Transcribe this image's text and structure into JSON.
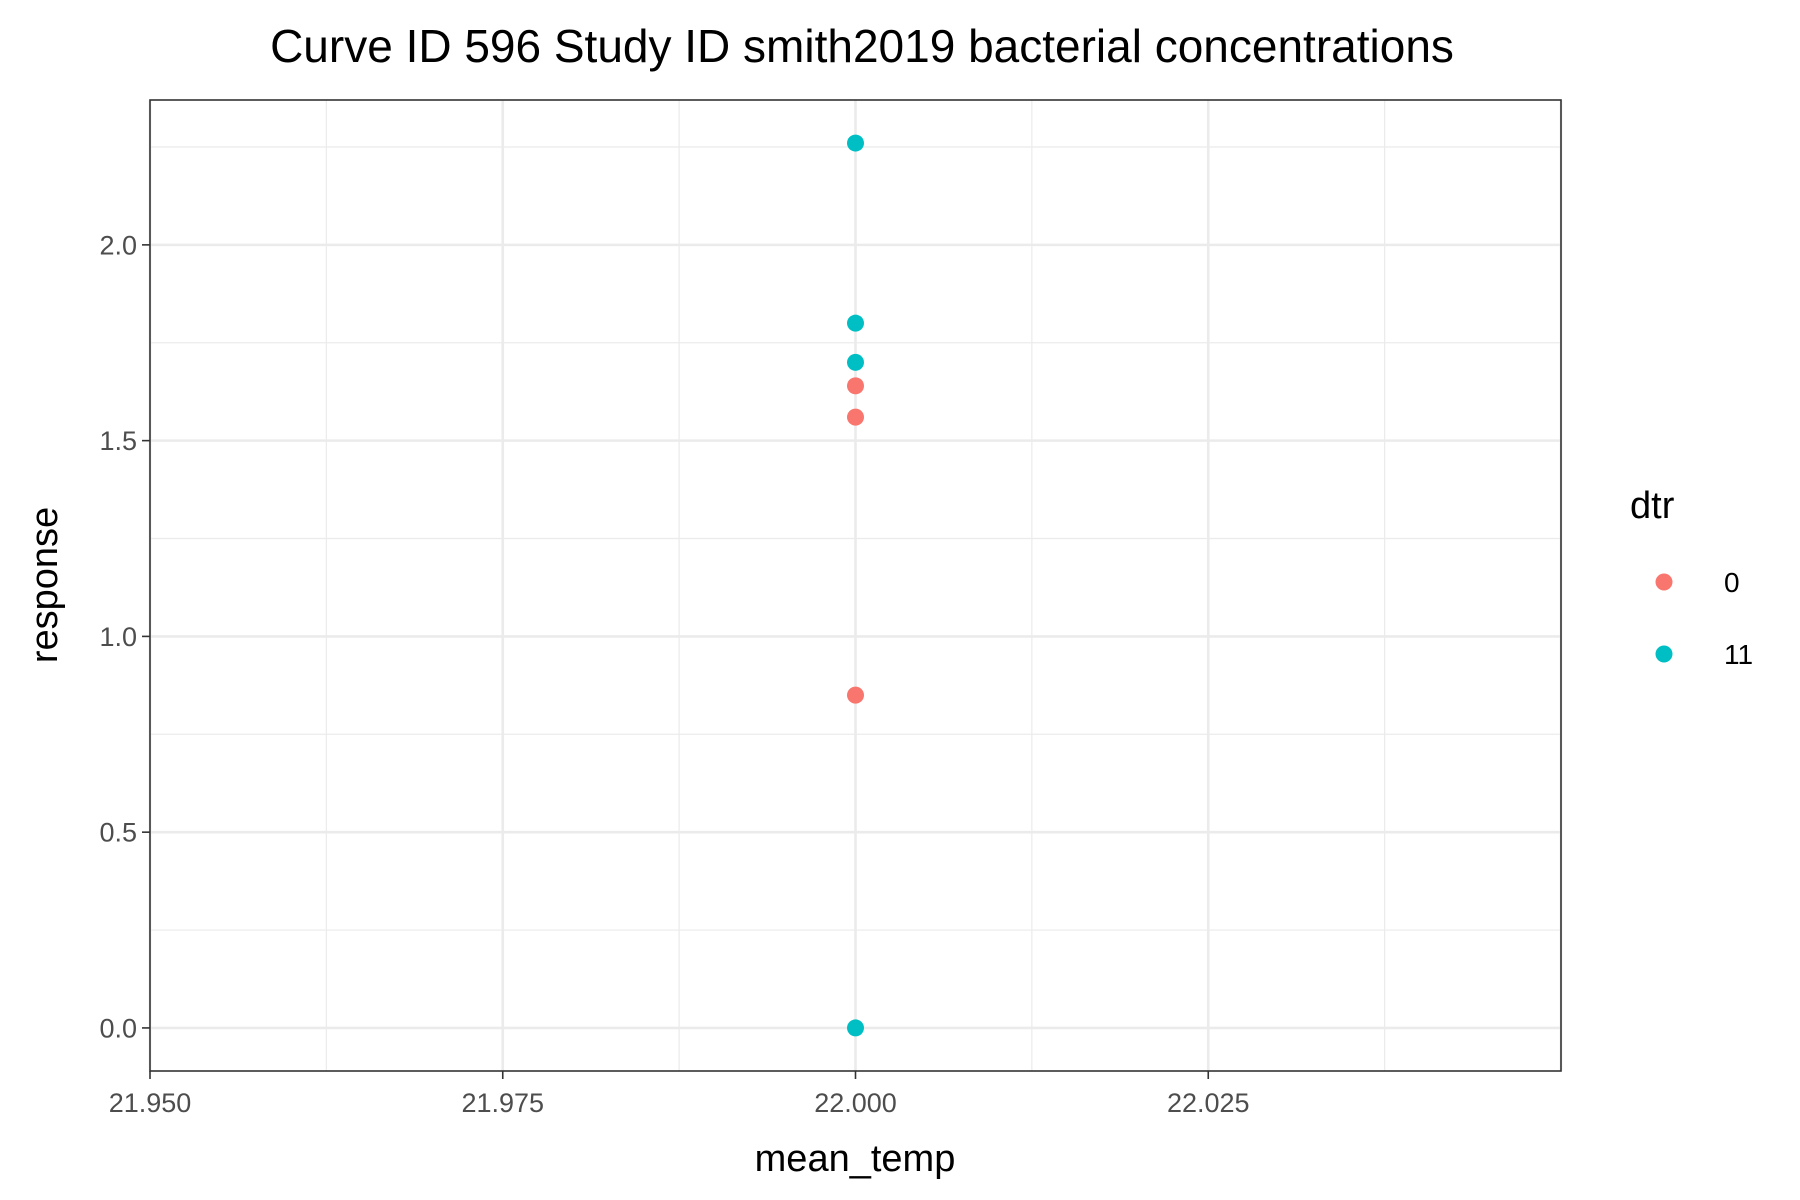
{
  "chart_data": {
    "type": "scatter",
    "title": "Curve ID 596 Study ID smith2019 bacterial concentrations",
    "xlabel": "mean_temp",
    "ylabel": "response",
    "xlim": [
      21.95,
      22.05
    ],
    "ylim": [
      -0.11,
      2.37
    ],
    "x_ticks": [
      "21.950",
      "21.975",
      "22.000",
      "22.025"
    ],
    "y_ticks": [
      "0.0",
      "0.5",
      "1.0",
      "1.5",
      "2.0"
    ],
    "grid": true,
    "legend": {
      "title": "dtr",
      "position": "right",
      "entries": [
        "0",
        "11"
      ]
    },
    "series": [
      {
        "name": "0",
        "color": "#F8766D",
        "points": [
          [
            22.0,
            1.64
          ],
          [
            22.0,
            1.56
          ],
          [
            22.0,
            0.85
          ]
        ]
      },
      {
        "name": "11",
        "color": "#00BFC4",
        "points": [
          [
            22.0,
            2.26
          ],
          [
            22.0,
            1.8
          ],
          [
            22.0,
            1.7
          ],
          [
            22.0,
            0.0
          ]
        ]
      }
    ]
  }
}
